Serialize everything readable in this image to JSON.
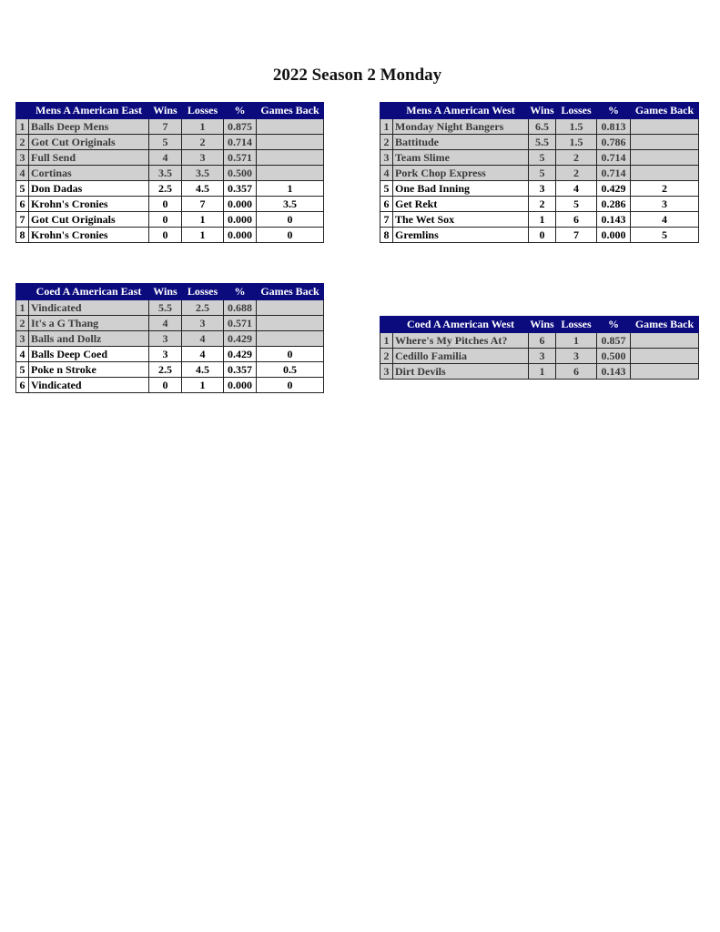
{
  "title": "2022 Season 2 Monday",
  "columns": [
    "Wins",
    "Losses",
    "%",
    "Games Back"
  ],
  "colors": {
    "header_bg": "#0b0b7e",
    "playoff_row_bg": "#d0d0d0",
    "other_row_bg": "#ffffff"
  },
  "tables": [
    {
      "division": "Mens A American East",
      "top_count": 4,
      "rows": [
        [
          "1",
          "Balls Deep Mens",
          "7",
          "1",
          "0.875",
          ""
        ],
        [
          "2",
          "Got Cut Originals",
          "5",
          "2",
          "0.714",
          ""
        ],
        [
          "3",
          "Full Send",
          "4",
          "3",
          "0.571",
          ""
        ],
        [
          "4",
          "Cortinas",
          "3.5",
          "3.5",
          "0.500",
          ""
        ],
        [
          "5",
          "Don Dadas",
          "2.5",
          "4.5",
          "0.357",
          "1"
        ],
        [
          "6",
          "Krohn's Cronies",
          "0",
          "7",
          "0.000",
          "3.5"
        ],
        [
          "7",
          "Got Cut Originals",
          "0",
          "1",
          "0.000",
          "0"
        ],
        [
          "8",
          "Krohn's Cronies",
          "0",
          "1",
          "0.000",
          "0"
        ]
      ]
    },
    {
      "division": "Mens A American West",
      "top_count": 4,
      "rows": [
        [
          "1",
          "Monday Night Bangers",
          "6.5",
          "1.5",
          "0.813",
          ""
        ],
        [
          "2",
          "Battitude",
          "5.5",
          "1.5",
          "0.786",
          ""
        ],
        [
          "3",
          "Team Slime",
          "5",
          "2",
          "0.714",
          ""
        ],
        [
          "4",
          "Pork Chop Express",
          "5",
          "2",
          "0.714",
          ""
        ],
        [
          "5",
          "One Bad Inning",
          "3",
          "4",
          "0.429",
          "2"
        ],
        [
          "6",
          "Get Rekt",
          "2",
          "5",
          "0.286",
          "3"
        ],
        [
          "7",
          "The Wet Sox",
          "1",
          "6",
          "0.143",
          "4"
        ],
        [
          "8",
          "Gremlins",
          "0",
          "7",
          "0.000",
          "5"
        ]
      ]
    },
    {
      "division": "Coed A American East",
      "top_count": 3,
      "rows": [
        [
          "1",
          "Vindicated",
          "5.5",
          "2.5",
          "0.688",
          ""
        ],
        [
          "2",
          "It's a G Thang",
          "4",
          "3",
          "0.571",
          ""
        ],
        [
          "3",
          "Balls and Dollz",
          "3",
          "4",
          "0.429",
          ""
        ],
        [
          "4",
          "Balls Deep Coed",
          "3",
          "4",
          "0.429",
          "0"
        ],
        [
          "5",
          "Poke n Stroke",
          "2.5",
          "4.5",
          "0.357",
          "0.5"
        ],
        [
          "6",
          "Vindicated",
          "0",
          "1",
          "0.000",
          "0"
        ]
      ]
    },
    {
      "division": "Coed A American West",
      "top_count": 3,
      "rows": [
        [
          "1",
          "Where's My Pitches At?",
          "6",
          "1",
          "0.857",
          ""
        ],
        [
          "2",
          "Cedillo Familia",
          "3",
          "3",
          "0.500",
          ""
        ],
        [
          "3",
          "Dirt Devils",
          "1",
          "6",
          "0.143",
          ""
        ]
      ]
    }
  ]
}
